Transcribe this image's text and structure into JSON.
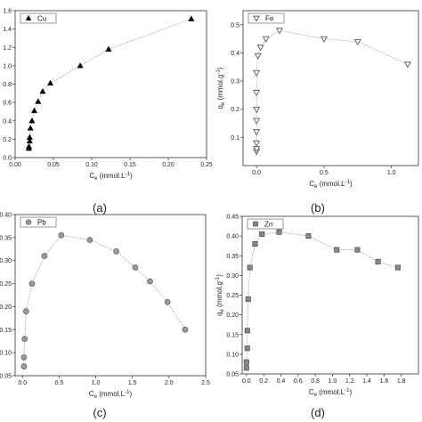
{
  "chart_data": [
    {
      "type": "scatter",
      "caption": "(a)",
      "xlabel_main": "C",
      "xlabel_sub": "e",
      "xlabel_unit": " (mmol.L",
      "ylabel_main": "",
      "ylabel_sub": "",
      "ylabel_unit": "",
      "xlim": [
        0,
        0.25
      ],
      "ylim": [
        0,
        1.6
      ],
      "xticks": [
        "0.00",
        "0.05",
        "0.10",
        "0.15",
        "0.20",
        "0.25"
      ],
      "yticks": [
        "0.0",
        "0.2",
        "0.4",
        "0.6",
        "0.8",
        "1.0",
        "1.2",
        "1.4",
        "1.6"
      ],
      "legend": {
        "position": "top-left"
      },
      "series": [
        {
          "name": "Cu",
          "marker": "triangle-up",
          "color": "#000000",
          "x": [
            0.018,
            0.018,
            0.019,
            0.019,
            0.02,
            0.022,
            0.025,
            0.03,
            0.036,
            0.046,
            0.085,
            0.122,
            0.23
          ],
          "y": [
            0.1,
            0.12,
            0.18,
            0.22,
            0.32,
            0.4,
            0.51,
            0.61,
            0.72,
            0.81,
            1.0,
            1.18,
            1.51
          ]
        }
      ]
    },
    {
      "type": "scatter",
      "caption": "(b)",
      "xlabel_main": "C",
      "xlabel_sub": "e",
      "xlabel_unit": " (mmol.L",
      "ylabel_main": "q",
      "ylabel_sub": "e",
      "ylabel_unit": " (mmol.g",
      "xlim": [
        -0.1,
        1.2
      ],
      "ylim": [
        0,
        0.55
      ],
      "xticks": [
        "0.0",
        "0.5",
        "1.0"
      ],
      "yticks": [
        "0.1",
        "0.2",
        "0.3",
        "0.4",
        "0.5"
      ],
      "legend": {
        "position": "top-left"
      },
      "series": [
        {
          "name": "Fe",
          "marker": "triangle-down-open",
          "color": "#666666",
          "x": [
            0.0,
            0.0,
            0.0,
            0.0,
            0.0,
            0.0,
            0.0,
            0.0,
            0.01,
            0.03,
            0.07,
            0.17,
            0.5,
            0.75,
            1.12
          ],
          "y": [
            0.05,
            0.06,
            0.08,
            0.12,
            0.16,
            0.2,
            0.26,
            0.33,
            0.39,
            0.42,
            0.45,
            0.48,
            0.45,
            0.44,
            0.36
          ]
        }
      ]
    },
    {
      "type": "scatter",
      "caption": "(c)",
      "xlabel_main": "C",
      "xlabel_sub": "e",
      "xlabel_unit": " (mmol.L",
      "ylabel_main": "",
      "ylabel_sub": "",
      "ylabel_unit": "",
      "xlim": [
        -0.1,
        2.5
      ],
      "ylim": [
        0.05,
        0.4
      ],
      "xticks": [
        "0.0",
        "0.5",
        "1.0",
        "1.5",
        "2.0",
        "2.5"
      ],
      "yticks": [
        "0.05",
        "0.10",
        "0.15",
        "0.20",
        "0.25",
        "0.30",
        "0.35",
        "0.40"
      ],
      "legend": {
        "position": "top-left"
      },
      "series": [
        {
          "name": "Pb",
          "marker": "circle",
          "color": "#999999",
          "x": [
            0.02,
            0.02,
            0.03,
            0.05,
            0.13,
            0.3,
            0.53,
            0.92,
            1.28,
            1.54,
            1.74,
            1.98,
            2.22
          ],
          "y": [
            0.07,
            0.09,
            0.13,
            0.19,
            0.25,
            0.31,
            0.355,
            0.345,
            0.32,
            0.285,
            0.255,
            0.21,
            0.15
          ]
        }
      ]
    },
    {
      "type": "scatter",
      "caption": "(d)",
      "xlabel_main": "C",
      "xlabel_sub": "e",
      "xlabel_unit": " (mmol.L",
      "ylabel_main": "q",
      "ylabel_sub": "e",
      "ylabel_unit": " (mmol.g",
      "xlim": [
        -0.05,
        2.0
      ],
      "ylim": [
        0.05,
        0.45
      ],
      "xticks": [
        "0.0",
        "0.2",
        "0.4",
        "0.6",
        "0.8",
        "1.0",
        "1.2",
        "1.4",
        "1.6",
        "1.8"
      ],
      "yticks": [
        "0.05",
        "0.10",
        "0.15",
        "0.20",
        "0.25",
        "0.30",
        "0.35",
        "0.40",
        "0.45"
      ],
      "legend": {
        "position": "top-left"
      },
      "series": [
        {
          "name": "Zn",
          "marker": "square",
          "color": "#888888",
          "x": [
            0.0,
            0.0,
            0.01,
            0.01,
            0.02,
            0.04,
            0.1,
            0.18,
            0.38,
            0.72,
            1.05,
            1.29,
            1.53,
            1.76
          ],
          "y": [
            0.065,
            0.08,
            0.115,
            0.16,
            0.24,
            0.32,
            0.38,
            0.405,
            0.41,
            0.4,
            0.365,
            0.365,
            0.335,
            0.32
          ]
        }
      ]
    }
  ]
}
